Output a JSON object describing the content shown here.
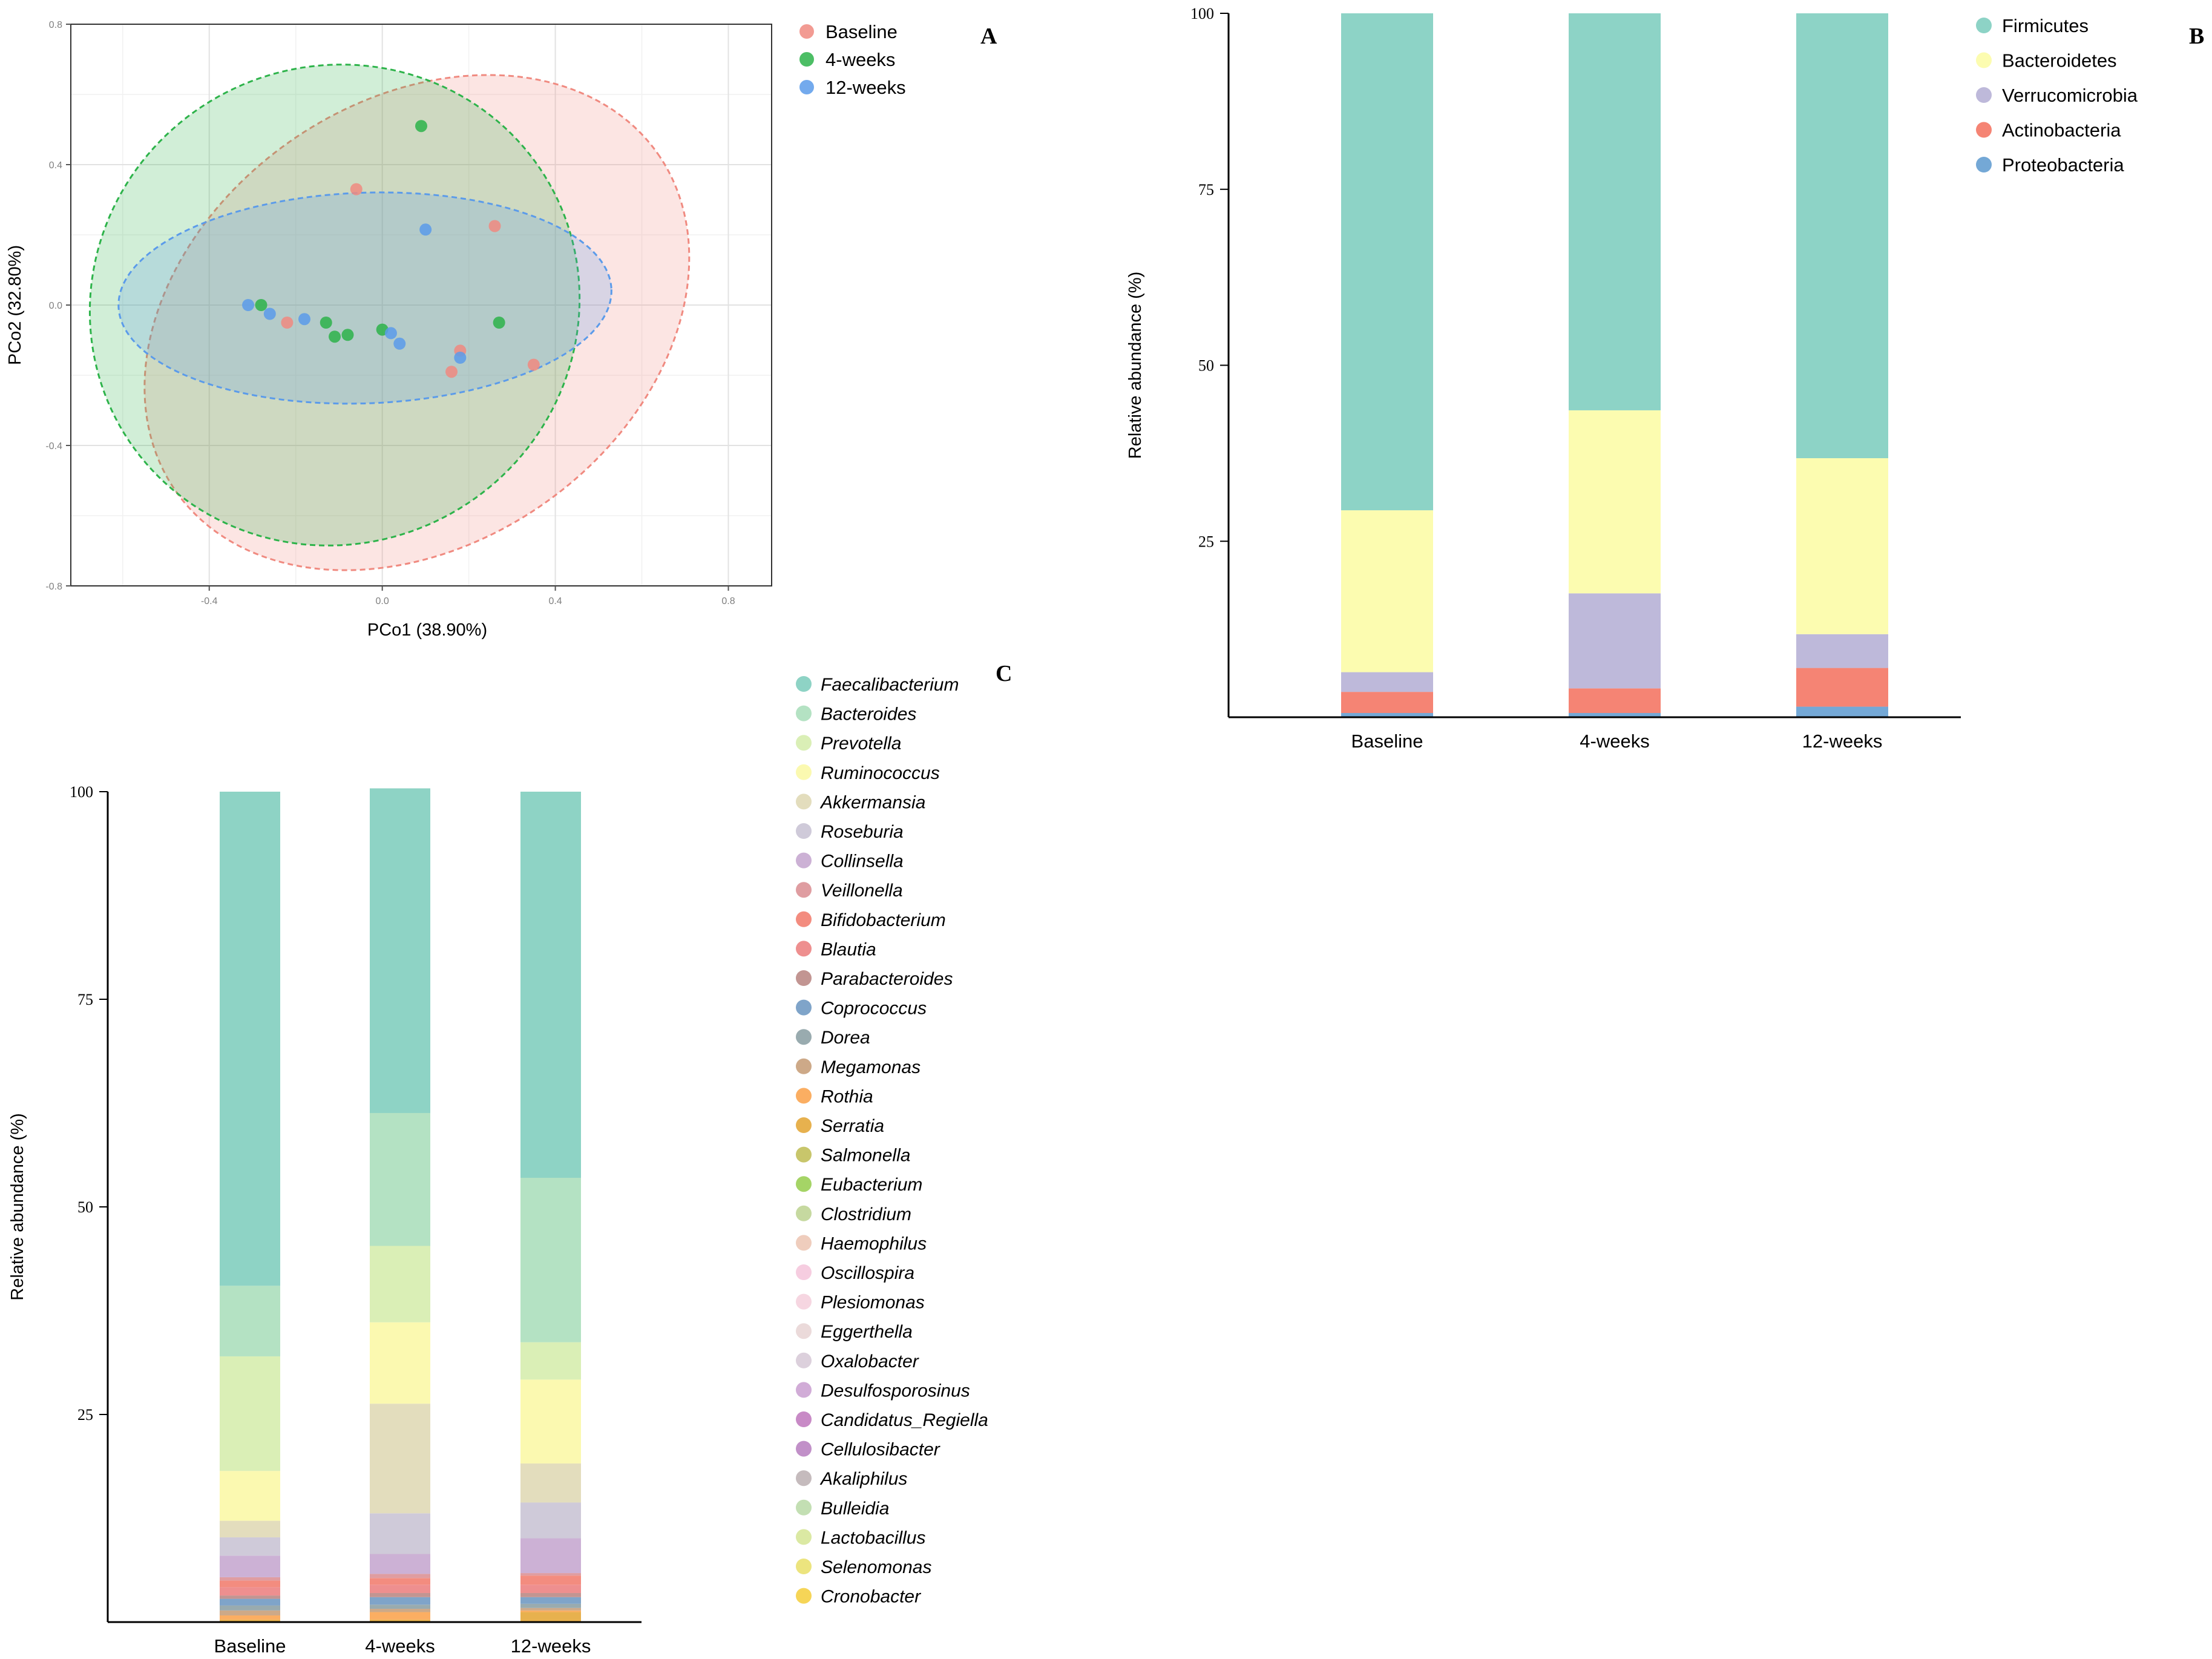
{
  "chart_data": [
    {
      "panel": "A",
      "type": "scatter",
      "xlabel": "PCo1 (38.90%)",
      "ylabel": "PCo2 (32.80%)",
      "xlim": [
        -0.72,
        0.9
      ],
      "ylim": [
        -0.8,
        0.8
      ],
      "xticks": [
        -0.4,
        0.0,
        0.4,
        0.8
      ],
      "yticks": [
        0.8,
        0.4,
        0.0,
        -0.4,
        -0.8
      ],
      "xtick_labels": [
        "-0.4",
        "0.0",
        "0.4",
        "0.8"
      ],
      "ytick_labels": [
        "0.8",
        "0.4",
        "0.0",
        "-0.4",
        "-0.8"
      ],
      "grid": true,
      "legend": "top-right",
      "series": [
        {
          "name": "Baseline",
          "color": "#f08a80",
          "points": [
            [
              -0.06,
              0.33
            ],
            [
              0.26,
              0.225
            ],
            [
              -0.22,
              -0.05
            ],
            [
              0.18,
              -0.13
            ],
            [
              0.16,
              -0.19
            ],
            [
              0.35,
              -0.17
            ]
          ],
          "ellipse": {
            "cx": 0.08,
            "cy": -0.05,
            "rx": 0.68,
            "ry": 0.63,
            "angle": -35
          }
        },
        {
          "name": "4-weeks",
          "color": "#2db34a",
          "points": [
            [
              0.09,
              0.51
            ],
            [
              -0.28,
              0.0
            ],
            [
              -0.13,
              -0.05
            ],
            [
              -0.11,
              -0.09
            ],
            [
              -0.08,
              -0.085
            ],
            [
              0.0,
              -0.07
            ],
            [
              0.27,
              -0.05
            ]
          ],
          "ellipse": {
            "cx": -0.11,
            "cy": 0.0,
            "rx": 0.57,
            "ry": 0.68,
            "angle": -28
          }
        },
        {
          "name": "12-weeks",
          "color": "#5b9bea",
          "points": [
            [
              0.1,
              0.215
            ],
            [
              -0.31,
              0.0
            ],
            [
              -0.26,
              -0.025
            ],
            [
              -0.18,
              -0.04
            ],
            [
              0.02,
              -0.08
            ],
            [
              0.04,
              -0.11
            ],
            [
              0.18,
              -0.15
            ]
          ],
          "ellipse": {
            "cx": -0.04,
            "cy": 0.02,
            "rx": 0.57,
            "ry": 0.3,
            "angle": -2
          }
        }
      ]
    },
    {
      "panel": "B",
      "type": "bar",
      "stacked": true,
      "ylabel": "Relative abundance (%)",
      "ylim": [
        0,
        100
      ],
      "yticks": [
        25,
        50,
        75,
        100
      ],
      "ytick_labels": [
        "25",
        "50",
        "75",
        "100"
      ],
      "categories": [
        "Baseline",
        "4-weeks",
        "12-weeks"
      ],
      "legend": "top-right",
      "series": [
        {
          "name": "Proteobacteria",
          "color": "#74a8d6",
          "values": [
            0.6,
            0.6,
            1.5
          ]
        },
        {
          "name": "Actinobacteria",
          "color": "#f58474",
          "values": [
            3.0,
            3.5,
            5.5
          ]
        },
        {
          "name": "Verrucomicrobia",
          "color": "#beb9da",
          "values": [
            2.8,
            13.5,
            4.8
          ]
        },
        {
          "name": "Bacteroidetes",
          "color": "#fcfcb0",
          "values": [
            23.0,
            26.0,
            25.0
          ]
        },
        {
          "name": "Firmicutes",
          "color": "#8dd3c6",
          "values": [
            70.6,
            56.4,
            63.2
          ]
        }
      ],
      "legend_order": [
        "Firmicutes",
        "Bacteroidetes",
        "Verrucomicrobia",
        "Actinobacteria",
        "Proteobacteria"
      ]
    },
    {
      "panel": "C",
      "type": "bar",
      "stacked": true,
      "ylabel": "Relative abundance (%)",
      "ylim": [
        0,
        100
      ],
      "yticks": [
        25,
        50,
        75,
        100
      ],
      "ytick_labels": [
        "25",
        "50",
        "75",
        "100"
      ],
      "categories": [
        "Baseline",
        "4-weeks",
        "12-weeks"
      ],
      "legend": "right",
      "series": [
        {
          "name": "Cronobacter",
          "color": "#f6d557",
          "values": [
            0,
            0,
            0
          ]
        },
        {
          "name": "Selenomonas",
          "color": "#ece47e",
          "values": [
            0,
            0,
            0
          ]
        },
        {
          "name": "Lactobacillus",
          "color": "#dbe9a3",
          "values": [
            0,
            0,
            0
          ]
        },
        {
          "name": "Bulleidia",
          "color": "#c3dfb3",
          "values": [
            0,
            0,
            0
          ]
        },
        {
          "name": "Akaliphilus",
          "color": "#c5bbbd",
          "values": [
            0,
            0,
            0
          ]
        },
        {
          "name": "Cellulosibacter",
          "color": "#c190c8",
          "values": [
            0,
            0,
            0
          ]
        },
        {
          "name": "Candidatus_Regiella",
          "color": "#c88ac6",
          "values": [
            0,
            0,
            0
          ]
        },
        {
          "name": "Desulfosporosinus",
          "color": "#d1acd7",
          "values": [
            0,
            0,
            0
          ]
        },
        {
          "name": "Oxalobacter",
          "color": "#dcd0dc",
          "values": [
            0,
            0,
            0
          ]
        },
        {
          "name": "Eggerthella",
          "color": "#ebdada",
          "values": [
            0,
            0,
            0
          ]
        },
        {
          "name": "Plesiomonas",
          "color": "#f6d6e1",
          "values": [
            0,
            0,
            0
          ]
        },
        {
          "name": "Oscillospira",
          "color": "#f6cde0",
          "values": [
            0,
            0,
            0
          ]
        },
        {
          "name": "Haemophilus",
          "color": "#efcdbd",
          "values": [
            0,
            0,
            0
          ]
        },
        {
          "name": "Clostridium",
          "color": "#c6d9a0",
          "values": [
            0,
            0,
            0
          ]
        },
        {
          "name": "Eubacterium",
          "color": "#a5d466",
          "values": [
            0,
            0,
            0
          ]
        },
        {
          "name": "Salmonella",
          "color": "#c8c66b",
          "values": [
            0,
            0,
            0
          ]
        },
        {
          "name": "Serratia",
          "color": "#e7b14e",
          "values": [
            0.3,
            0.3,
            1.2
          ]
        },
        {
          "name": "Rothia",
          "color": "#fbae62",
          "values": [
            0.5,
            0.9,
            0.2
          ]
        },
        {
          "name": "Megamonas",
          "color": "#cda988",
          "values": [
            0.6,
            0.4,
            0.3
          ]
        },
        {
          "name": "Dorea",
          "color": "#99abaf",
          "values": [
            0.6,
            0.5,
            0.5
          ]
        },
        {
          "name": "Coprococcus",
          "color": "#7fa4c9",
          "values": [
            0.8,
            0.9,
            0.8
          ]
        },
        {
          "name": "Parabacteroides",
          "color": "#c29592",
          "values": [
            0.4,
            0.5,
            0.5
          ]
        },
        {
          "name": "Blautia",
          "color": "#ee8f8f",
          "values": [
            1.0,
            1.0,
            1.0
          ]
        },
        {
          "name": "Bifidobacterium",
          "color": "#f38c7f",
          "values": [
            0.8,
            0.8,
            1.1
          ]
        },
        {
          "name": "Veillonella",
          "color": "#df9da1",
          "values": [
            0.4,
            0.5,
            0.3
          ]
        },
        {
          "name": "Collinsella",
          "color": "#ccb1d5",
          "values": [
            2.6,
            2.4,
            4.2
          ]
        },
        {
          "name": "Roseburia",
          "color": "#cfcad9",
          "values": [
            2.2,
            4.9,
            4.3
          ]
        },
        {
          "name": "Akkermansia",
          "color": "#e3ddbd",
          "values": [
            2.0,
            13.2,
            4.7
          ]
        },
        {
          "name": "Ruminococcus",
          "color": "#fbf9b0",
          "values": [
            6.0,
            9.8,
            10.1
          ]
        },
        {
          "name": "Prevotella",
          "color": "#daefb6",
          "values": [
            13.8,
            9.2,
            4.5
          ]
        },
        {
          "name": "Bacteroides",
          "color": "#b4e2c3",
          "values": [
            8.5,
            16.0,
            19.8
          ]
        },
        {
          "name": "Faecalibacterium",
          "color": "#8ed3c5",
          "values": [
            59.5,
            39.1,
            46.5
          ]
        }
      ],
      "legend_order": [
        "Faecalibacterium",
        "Bacteroides",
        "Prevotella",
        "Ruminococcus",
        "Akkermansia",
        "Roseburia",
        "Collinsella",
        "Veillonella",
        "Bifidobacterium",
        "Blautia",
        "Parabacteroides",
        "Coprococcus",
        "Dorea",
        "Megamonas",
        "Rothia",
        "Serratia",
        "Salmonella",
        "Eubacterium",
        "Clostridium",
        "Haemophilus",
        "Oscillospira",
        "Plesiomonas",
        "Eggerthella",
        "Oxalobacter",
        "Desulfosporosinus",
        "Candidatus_Regiella",
        "Cellulosibacter",
        "Akaliphilus",
        "Bulleidia",
        "Lactobacillus",
        "Selenomonas",
        "Cronobacter"
      ]
    }
  ],
  "panel_labels": {
    "a": "A",
    "b": "B",
    "c": "C"
  }
}
